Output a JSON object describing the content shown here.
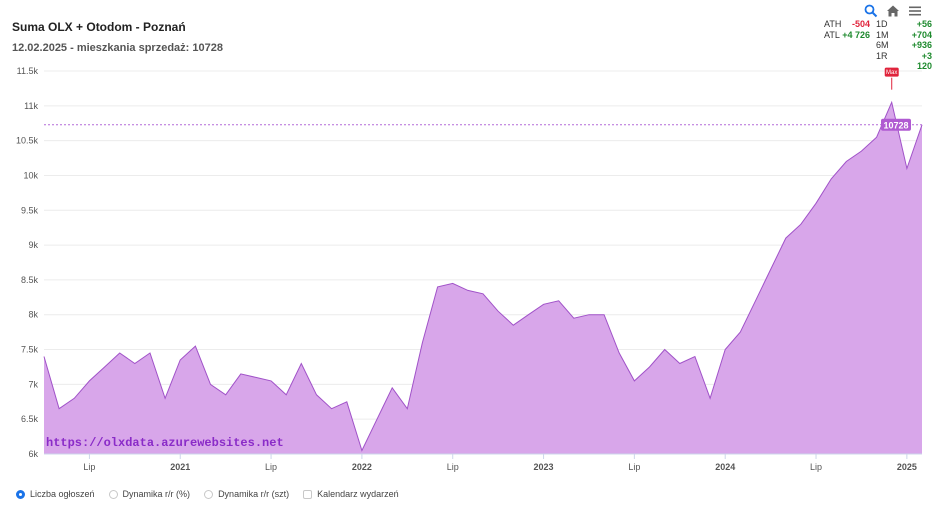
{
  "header": {
    "title": "Suma OLX + Otodom - Poznań",
    "subtitle": "12.02.2025 - mieszkania sprzedaż: 10728"
  },
  "toolbar": {
    "icons": [
      "zoom-icon",
      "home-icon",
      "menu-icon"
    ]
  },
  "stats": {
    "ath_label": "ATH",
    "ath_value": "-504",
    "atl_label": "ATL",
    "atl_value": "+4 726",
    "d1_label": "1D",
    "d1_value": "+56",
    "m1_label": "1M",
    "m1_value": "+704",
    "m6_label": "6M",
    "m6_value": "+936",
    "r1_label": "1R",
    "r1_value": "+3 120"
  },
  "chart_data": {
    "type": "area",
    "x": [
      "2020-04",
      "2020-05",
      "2020-06",
      "2020-07",
      "2020-08",
      "2020-09",
      "2020-10",
      "2020-11",
      "2020-12",
      "2021-01",
      "2021-02",
      "2021-03",
      "2021-04",
      "2021-05",
      "2021-06",
      "2021-07",
      "2021-08",
      "2021-09",
      "2021-10",
      "2021-11",
      "2021-12",
      "2022-01",
      "2022-02",
      "2022-03",
      "2022-04",
      "2022-05",
      "2022-06",
      "2022-07",
      "2022-08",
      "2022-09",
      "2022-10",
      "2022-11",
      "2022-12",
      "2023-01",
      "2023-02",
      "2023-03",
      "2023-04",
      "2023-05",
      "2023-06",
      "2023-07",
      "2023-08",
      "2023-09",
      "2023-10",
      "2023-11",
      "2023-12",
      "2024-01",
      "2024-02",
      "2024-03",
      "2024-04",
      "2024-05",
      "2024-06",
      "2024-07",
      "2024-08",
      "2024-09",
      "2024-10",
      "2024-11",
      "2024-12",
      "2025-01",
      "2025-02"
    ],
    "values": [
      7400,
      6650,
      6800,
      7050,
      7250,
      7450,
      7300,
      7450,
      6800,
      7350,
      7550,
      7000,
      6850,
      7150,
      7100,
      7050,
      6850,
      7300,
      6850,
      6650,
      6750,
      6050,
      6500,
      6950,
      6650,
      7600,
      8400,
      8450,
      8350,
      8300,
      8050,
      7850,
      8000,
      8150,
      8200,
      7950,
      8000,
      8000,
      7450,
      7050,
      7250,
      7500,
      7300,
      7400,
      6800,
      7500,
      7750,
      8200,
      8650,
      9100,
      9300,
      9600,
      9950,
      10200,
      10350,
      10550,
      11050,
      10100,
      10728
    ],
    "ylim": [
      6000,
      11500
    ],
    "yticks": [
      "6k",
      "6.5k",
      "7k",
      "7.5k",
      "8k",
      "8.5k",
      "9k",
      "9.5k",
      "10k",
      "10.5k",
      "11k",
      "11.5k"
    ],
    "xtick_labels": [
      "Lip",
      "2021",
      "Lip",
      "2022",
      "Lip",
      "2023",
      "Lip",
      "2024",
      "Lip",
      "2025"
    ],
    "last_value_label": "10728",
    "last_value": 10728,
    "max_marker_label": "Max",
    "max_value": 11232,
    "watermark": "https://olxdata.azurewebsites.net",
    "fill_color": "#d8a6ea",
    "line_color": "#a052c8",
    "grid": true
  },
  "legend": {
    "items": [
      {
        "label": "Liczba ogłoszeń",
        "type": "radio",
        "selected": true
      },
      {
        "label": "Dynamika r/r (%)",
        "type": "radio",
        "selected": false
      },
      {
        "label": "Dynamika r/r (szt)",
        "type": "radio",
        "selected": false
      },
      {
        "label": "Kalendarz wydarzeń",
        "type": "checkbox",
        "selected": false
      }
    ]
  }
}
